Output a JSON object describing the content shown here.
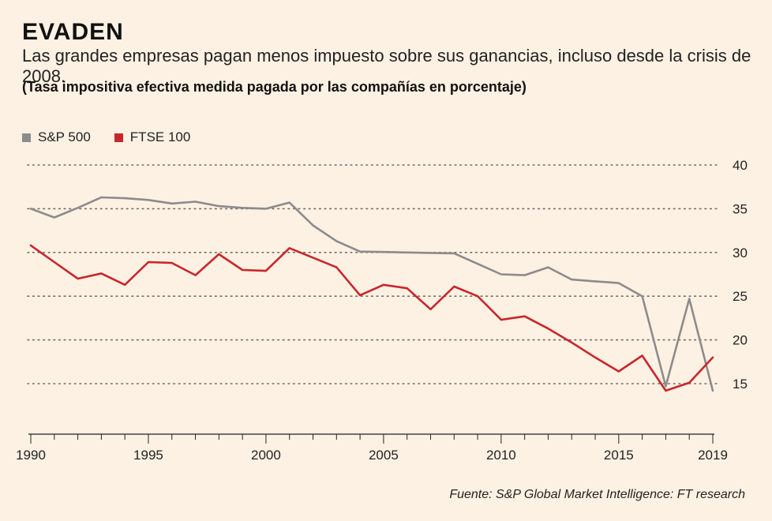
{
  "title": "EVADEN",
  "subtitle": "Las grandes empresas pagan menos impuesto sobre sus ganancias, incluso desde la crisis de 2008.",
  "note": "(Tasa impositiva efectiva medida pagada por las compañías en porcentaje)",
  "source": "Fuente: S&P Global Market Intelligence: FT research",
  "colors": {
    "sp500": "#8c8b8d",
    "ftse100": "#c9262c",
    "background": "#fdf1e3"
  },
  "chart_data": {
    "type": "line",
    "x": [
      1990,
      1991,
      1992,
      1993,
      1994,
      1995,
      1996,
      1997,
      1998,
      1999,
      2000,
      2001,
      2002,
      2003,
      2004,
      2005,
      2006,
      2007,
      2008,
      2009,
      2010,
      2011,
      2012,
      2013,
      2014,
      2015,
      2016,
      2017,
      2018,
      2019
    ],
    "series": [
      {
        "name": "S&P 500",
        "values": [
          35.0,
          34.0,
          35.1,
          36.3,
          36.2,
          36.0,
          35.6,
          35.8,
          35.3,
          35.1,
          35.0,
          35.7,
          33.1,
          31.3,
          30.1,
          30.05,
          30.0,
          29.95,
          29.9,
          28.7,
          27.5,
          27.4,
          28.3,
          26.9,
          26.7,
          26.5,
          25.0,
          14.7,
          24.7,
          14.2
        ],
        "color": "#8c8b8d"
      },
      {
        "name": "FTSE 100",
        "values": [
          30.8,
          28.9,
          27.0,
          27.6,
          26.3,
          28.9,
          28.8,
          27.4,
          29.8,
          28.0,
          27.9,
          30.5,
          29.4,
          28.3,
          25.1,
          26.3,
          25.9,
          23.5,
          26.1,
          25.0,
          22.3,
          22.7,
          21.3,
          19.7,
          18.0,
          16.4,
          18.2,
          14.2,
          15.1,
          18.0
        ]
      }
    ],
    "x_ticks": [
      "1990",
      "1995",
      "2000",
      "2005",
      "2010",
      "2015",
      "2019"
    ],
    "y_ticks": [
      "40",
      "35",
      "30",
      "25",
      "20",
      "15"
    ],
    "ylim": [
      10,
      40
    ],
    "xlim": [
      1990,
      2019
    ],
    "grid": "horizontal dotted",
    "legend_position": "top-left"
  }
}
